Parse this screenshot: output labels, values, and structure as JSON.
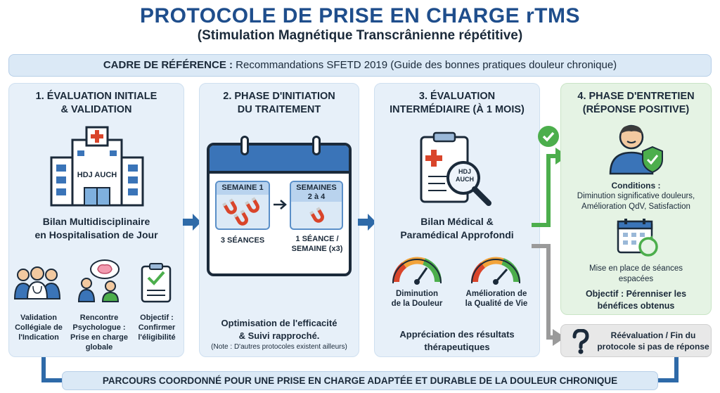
{
  "header": {
    "title": "PROTOCOLE DE PRISE EN CHARGE rTMS",
    "subtitle": "(Stimulation Magnétique Transcrânienne répétitive)"
  },
  "frame": {
    "label": "CADRE DE RÉFÉRENCE :",
    "text": " Recommandations SFETD 2019 (Guide des bonnes pratiques douleur chronique)"
  },
  "panel1": {
    "title_line1": "1. ÉVALUATION INITIALE",
    "title_line2": "& VALIDATION",
    "hospital_sign": "HDJ AUCH",
    "main_line1": "Bilan Multidisciplinaire",
    "main_line2": "en Hospitalisation de Jour",
    "items": [
      {
        "line1": "Validation",
        "line2": "Collégiale de",
        "line3": "l'Indication"
      },
      {
        "line1": "Rencontre",
        "line2": "Psychologue :",
        "line3": "Prise en charge",
        "line4": "globale"
      },
      {
        "line1": "Objectif :",
        "line2": "Confirmer",
        "line3": "l'éligibilité"
      }
    ]
  },
  "panel2": {
    "title_line1": "2. PHASE D'INITIATION",
    "title_line2": "DU TRAITEMENT",
    "week1_header": "SEMAINE 1",
    "week1_label": "3 SÉANCES",
    "week2_header_line1": "SEMAINES",
    "week2_header_line2": "2 à 4",
    "week2_label_line1": "1 SÉANCE /",
    "week2_label_line2": "SEMAINE (x3)",
    "main_line1": "Optimisation de l'efficacité",
    "main_line2": "& Suivi rapproché.",
    "note": "(Note : D'autres protocoles existent ailleurs)"
  },
  "panel3": {
    "title_line1": "3. ÉVALUATION",
    "title_line2": "INTERMÉDIAIRE (À 1 MOIS)",
    "clipboard_sign_line1": "HDJ",
    "clipboard_sign_line2": "AUCH",
    "main_line1": "Bilan Médical &",
    "main_line2": "Paramédical Approfondi",
    "gauge1_line1": "Diminution",
    "gauge1_line2": "de la Douleur",
    "gauge2_line1": "Amélioration de",
    "gauge2_line2": "la Qualité de Vie",
    "footer_line1": "Appréciation des résultats",
    "footer_line2": "thérapeutiques"
  },
  "panel4": {
    "title_line1": "4. PHASE D'ENTRETIEN",
    "title_line2": "(RÉPONSE POSITIVE)",
    "conditions_label": "Conditions :",
    "conditions_line1": "Diminution significative douleurs,",
    "conditions_line2": "Amélioration QdV, Satisfaction",
    "sessions_line1": "Mise en place de séances",
    "sessions_line2": "espacées",
    "objective_line1": "Objectif : Pérenniser les",
    "objective_line2": "bénéfices obtenus"
  },
  "failure": {
    "line1": "Réévaluation / Fin du",
    "line2": "protocole si pas de réponse"
  },
  "footer": {
    "text": "PARCOURS COORDONNÉ POUR UNE PRISE EN CHARGE ADAPTÉE ET DURABLE DE LA DOULEUR CHRONIQUE"
  },
  "colors": {
    "title": "#1f4e8c",
    "panel_blue": "#e7f0f9",
    "panel_green": "#e5f3e4",
    "arrow_blue": "#2e6aa8",
    "arrow_green": "#4cae4c",
    "arrow_grey": "#9a9a9a",
    "magnet_red": "#d9452b"
  },
  "icons": [
    "hospital-icon",
    "doctors-group-icon",
    "psychologist-icon",
    "checklist-icon",
    "calendar-icon",
    "magnet-icon",
    "clipboard-icon",
    "magnifier-icon",
    "gauge-icon",
    "check-circle-icon",
    "patient-shield-icon",
    "calendar-refresh-icon",
    "question-icon"
  ]
}
